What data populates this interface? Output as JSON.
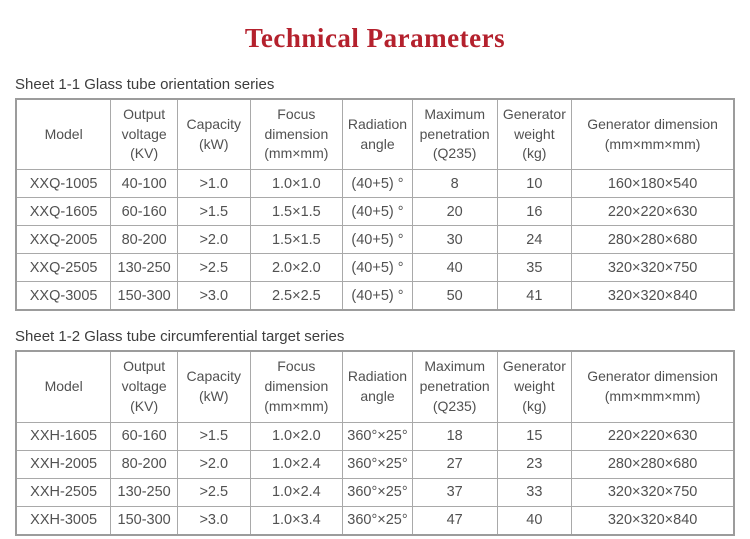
{
  "page": {
    "title": "Technical Parameters",
    "title_color": "#b4212d",
    "text_color": "#515151",
    "border_color": "#a9a9a9",
    "background_color": "#ffffff"
  },
  "tables": [
    {
      "caption": "Sheet 1-1 Glass tube orientation series",
      "headers": [
        "Model",
        "Output\nvoltage\n(KV)",
        "Capacity\n(kW)",
        "Focus\ndimension\n(mm×mm)",
        "Radiation\nangle",
        "Maximum\npenetration\n(Q235)",
        "Generator\nweight\n(kg)",
        "Generator dimension\n(mm×mm×mm)"
      ],
      "rows": [
        [
          "XXQ-1005",
          "40-100",
          ">1.0",
          "1.0×1.0",
          "(40+5) °",
          "8",
          "10",
          "160×180×540"
        ],
        [
          "XXQ-1605",
          "60-160",
          ">1.5",
          "1.5×1.5",
          "(40+5) °",
          "20",
          "16",
          "220×220×630"
        ],
        [
          "XXQ-2005",
          "80-200",
          ">2.0",
          "1.5×1.5",
          "(40+5) °",
          "30",
          "24",
          "280×280×680"
        ],
        [
          "XXQ-2505",
          "130-250",
          ">2.5",
          "2.0×2.0",
          "(40+5) °",
          "40",
          "35",
          "320×320×750"
        ],
        [
          "XXQ-3005",
          "150-300",
          ">3.0",
          "2.5×2.5",
          "(40+5) °",
          "50",
          "41",
          "320×320×840"
        ]
      ]
    },
    {
      "caption": "Sheet 1-2 Glass tube circumferential target series",
      "headers": [
        "Model",
        "Output\nvoltage\n(KV)",
        "Capacity\n(kW)",
        "Focus\ndimension\n(mm×mm)",
        "Radiation\nangle",
        "Maximum\npenetration\n(Q235)",
        "Generator\nweight\n(kg)",
        "Generator dimension\n(mm×mm×mm)"
      ],
      "rows": [
        [
          "XXH-1605",
          "60-160",
          ">1.5",
          "1.0×2.0",
          "360°×25°",
          "18",
          "15",
          "220×220×630"
        ],
        [
          "XXH-2005",
          "80-200",
          ">2.0",
          "1.0×2.4",
          "360°×25°",
          "27",
          "23",
          "280×280×680"
        ],
        [
          "XXH-2505",
          "130-250",
          ">2.5",
          "1.0×2.4",
          "360°×25°",
          "37",
          "33",
          "320×320×750"
        ],
        [
          "XXH-3005",
          "150-300",
          ">3.0",
          "1.0×3.4",
          "360°×25°",
          "47",
          "40",
          "320×320×840"
        ]
      ]
    }
  ]
}
